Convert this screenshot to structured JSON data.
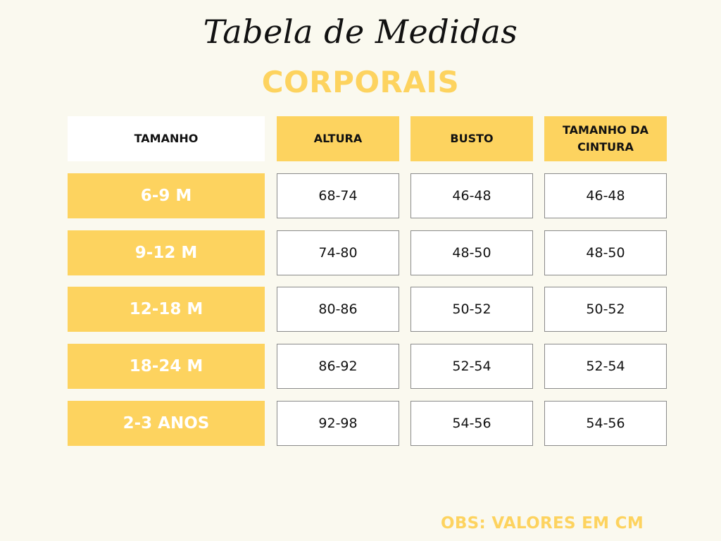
{
  "title": "Tabela de Medidas",
  "subtitle": "CORPORAIS",
  "headers": {
    "size": "TAMANHO",
    "height": "ALTURA",
    "bust": "BUSTO",
    "waist": "TAMANHO DA CINTURA"
  },
  "rows": [
    {
      "size": "6-9 M",
      "height": "68-74",
      "bust": "46-48",
      "waist": "46-48"
    },
    {
      "size": "9-12 M",
      "height": "74-80",
      "bust": "48-50",
      "waist": "48-50"
    },
    {
      "size": "12-18 M",
      "height": "80-86",
      "bust": "50-52",
      "waist": "50-52"
    },
    {
      "size": "18-24 M",
      "height": "86-92",
      "bust": "52-54",
      "waist": "52-54"
    },
    {
      "size": "2-3 ANOS",
      "height": "92-98",
      "bust": "54-56",
      "waist": "54-56"
    }
  ],
  "note": "OBS: VALORES EM CM",
  "colors": {
    "accent": "#fdd35f",
    "background": "#faf9ef"
  }
}
